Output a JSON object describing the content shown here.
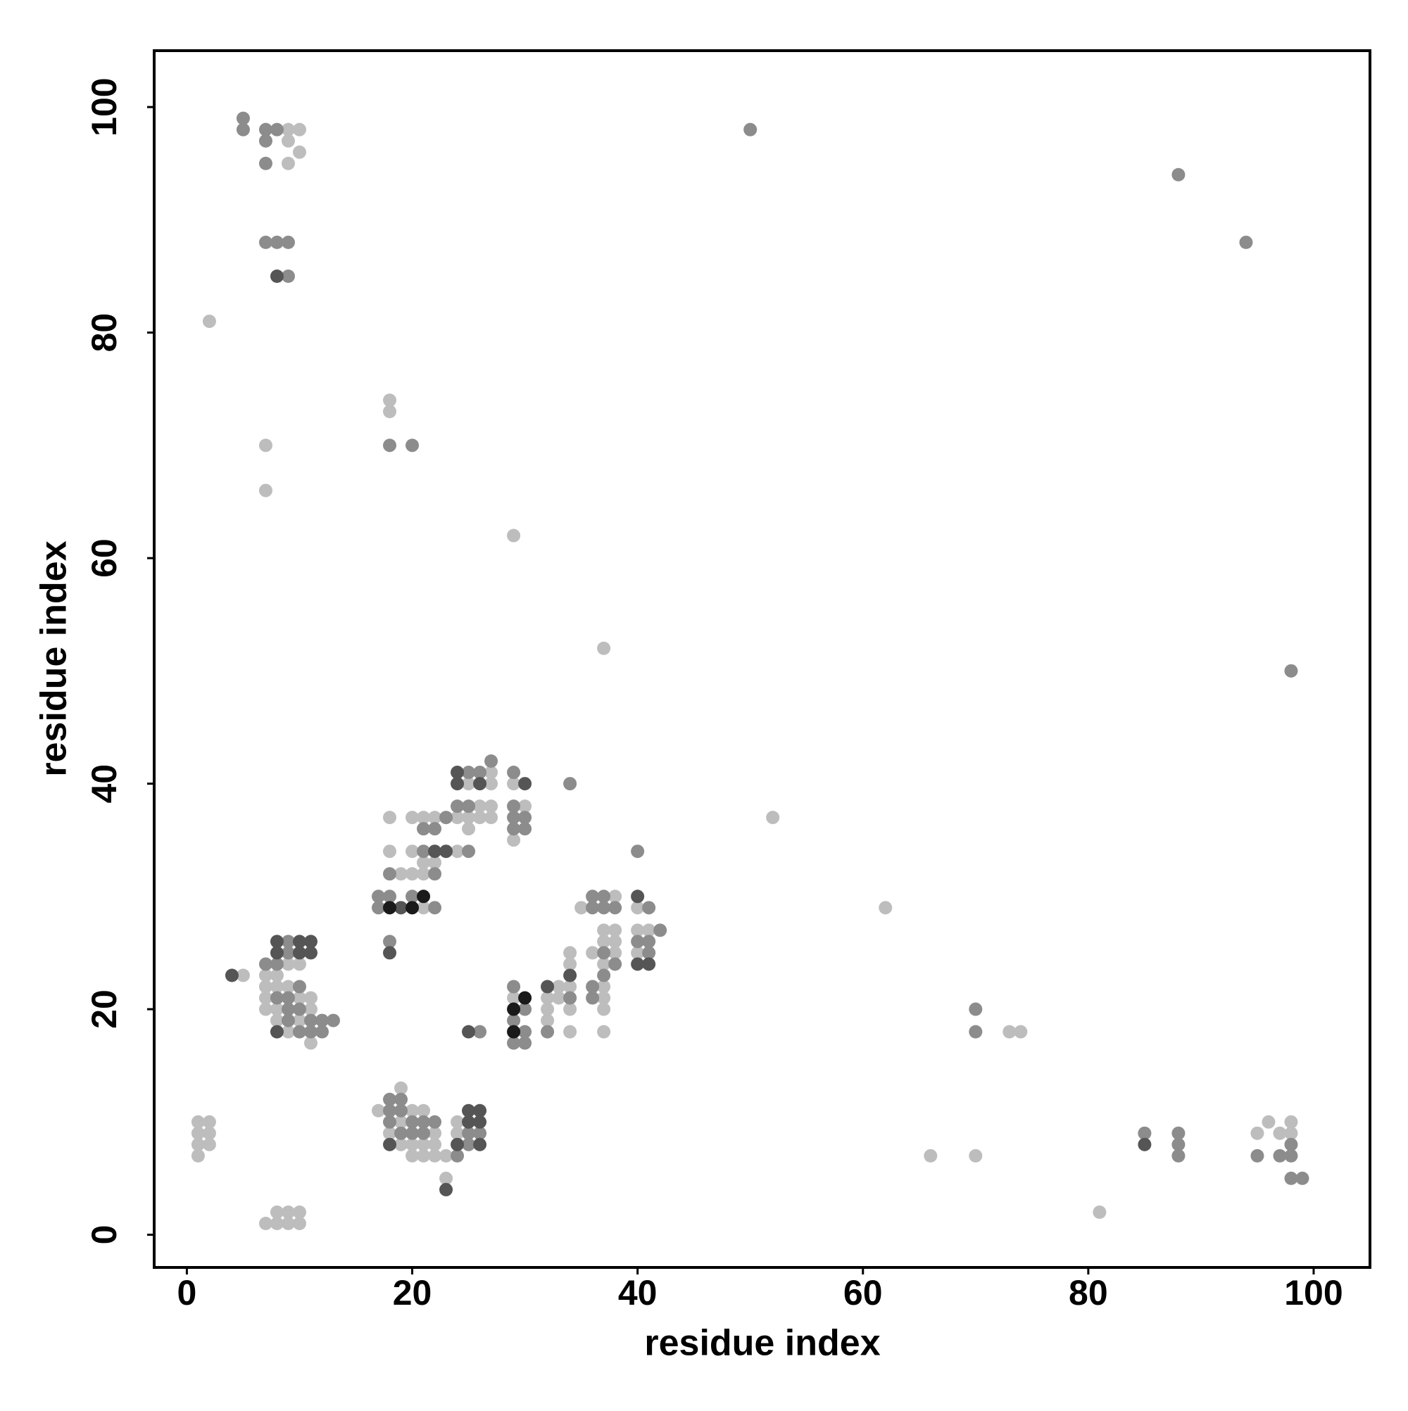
{
  "chart_data": {
    "type": "scatter",
    "xlabel": "residue index",
    "ylabel": "residue index",
    "xlim": [
      -2.9,
      105
    ],
    "ylim": [
      -2.9,
      105
    ],
    "xticks": [
      0,
      20,
      40,
      60,
      80,
      100
    ],
    "yticks": [
      0,
      20,
      40,
      60,
      80,
      100
    ],
    "series": [
      {
        "color": "#bdbdbd",
        "x": [
          9,
          10,
          9,
          10,
          9,
          2,
          18,
          18,
          7,
          7,
          29,
          37,
          52,
          62,
          73,
          74,
          66,
          70,
          81,
          95,
          96,
          97,
          98,
          98,
          1,
          1,
          1,
          1,
          2,
          2,
          2,
          7,
          8,
          8,
          9,
          9,
          10,
          10,
          5,
          7,
          7,
          7,
          7,
          8,
          8,
          8,
          8,
          9,
          9,
          9,
          10,
          10,
          10,
          11,
          11,
          11,
          17,
          18,
          19,
          19,
          19,
          20,
          20,
          20,
          21,
          21,
          21,
          22,
          22,
          22,
          23,
          23,
          24,
          24,
          18,
          18,
          19,
          20,
          20,
          20,
          21,
          21,
          21,
          21,
          22,
          22,
          24,
          24,
          25,
          25,
          25,
          26,
          26,
          27,
          27,
          27,
          27,
          29,
          29,
          30,
          29,
          32,
          32,
          32,
          33,
          33,
          34,
          34,
          34,
          34,
          34,
          35,
          36,
          37,
          37,
          37,
          37,
          37,
          37,
          37,
          38,
          38,
          38,
          38,
          40,
          40,
          40,
          41
        ],
        "y": [
          98,
          98,
          97,
          96,
          95,
          81,
          74,
          73,
          70,
          66,
          62,
          52,
          37,
          29,
          18,
          18,
          7,
          7,
          2,
          9,
          10,
          9,
          10,
          9,
          10,
          9,
          8,
          7,
          10,
          9,
          8,
          1,
          2,
          1,
          2,
          1,
          2,
          1,
          23,
          23,
          22,
          21,
          20,
          23,
          22,
          20,
          19,
          24,
          22,
          18,
          24,
          21,
          19,
          21,
          20,
          17,
          11,
          9,
          13,
          10,
          8,
          11,
          8,
          7,
          11,
          8,
          7,
          9,
          8,
          7,
          7,
          5,
          10,
          9,
          37,
          34,
          32,
          37,
          34,
          32,
          37,
          33,
          32,
          29,
          37,
          33,
          37,
          34,
          40,
          37,
          36,
          38,
          37,
          41,
          40,
          38,
          37,
          40,
          35,
          38,
          21,
          21,
          20,
          19,
          22,
          21,
          25,
          24,
          22,
          20,
          18,
          29,
          25,
          27,
          26,
          24,
          22,
          21,
          20,
          18,
          30,
          27,
          26,
          25,
          29,
          27,
          25,
          27
        ]
      },
      {
        "color": "#8c8c8c",
        "x": [
          5,
          5,
          7,
          8,
          7,
          7,
          7,
          8,
          9,
          9,
          50,
          88,
          94,
          18,
          20,
          98,
          70,
          70,
          85,
          88,
          88,
          88,
          95,
          97,
          98,
          98,
          98,
          99,
          7,
          8,
          8,
          9,
          9,
          9,
          9,
          9,
          10,
          10,
          10,
          11,
          11,
          12,
          12,
          13,
          18,
          18,
          18,
          19,
          19,
          19,
          20,
          20,
          21,
          21,
          22,
          24,
          25,
          25,
          26,
          17,
          17,
          18,
          18,
          18,
          20,
          21,
          21,
          22,
          22,
          22,
          23,
          24,
          25,
          25,
          25,
          26,
          27,
          29,
          29,
          29,
          29,
          30,
          30,
          34,
          26,
          29,
          29,
          29,
          30,
          30,
          30,
          32,
          34,
          36,
          36,
          36,
          36,
          37,
          37,
          37,
          37,
          38,
          38,
          40,
          40,
          41,
          41,
          41,
          42
        ],
        "y": [
          99,
          98,
          98,
          98,
          97,
          95,
          88,
          88,
          88,
          85,
          98,
          94,
          88,
          70,
          70,
          50,
          20,
          18,
          9,
          9,
          8,
          7,
          7,
          7,
          8,
          7,
          5,
          5,
          24,
          24,
          21,
          26,
          25,
          21,
          20,
          19,
          22,
          20,
          18,
          19,
          18,
          19,
          18,
          19,
          12,
          11,
          10,
          12,
          11,
          9,
          10,
          9,
          10,
          9,
          10,
          7,
          9,
          8,
          9,
          30,
          29,
          32,
          30,
          26,
          30,
          36,
          34,
          36,
          32,
          29,
          37,
          38,
          41,
          38,
          34,
          41,
          42,
          41,
          38,
          37,
          36,
          37,
          36,
          40,
          18,
          22,
          19,
          17,
          20,
          18,
          17,
          18,
          21,
          30,
          29,
          22,
          21,
          30,
          29,
          25,
          23,
          29,
          24,
          34,
          26,
          29,
          26,
          25,
          27
        ]
      },
      {
        "color": "#555555",
        "x": [
          8,
          85,
          4,
          8,
          8,
          8,
          10,
          10,
          11,
          11,
          18,
          23,
          24,
          25,
          25,
          26,
          26,
          26,
          18,
          19,
          22,
          23,
          24,
          24,
          26,
          30,
          25,
          32,
          34,
          40,
          40,
          41
        ],
        "y": [
          85,
          8,
          23,
          26,
          25,
          18,
          26,
          25,
          26,
          25,
          8,
          4,
          8,
          11,
          10,
          11,
          10,
          8,
          25,
          29,
          34,
          34,
          41,
          40,
          40,
          40,
          18,
          22,
          23,
          30,
          24,
          24
        ]
      },
      {
        "color": "#1a1a1a",
        "x": [
          18,
          20,
          21,
          29,
          29,
          30
        ],
        "y": [
          29,
          29,
          30,
          20,
          18,
          21
        ]
      }
    ]
  }
}
